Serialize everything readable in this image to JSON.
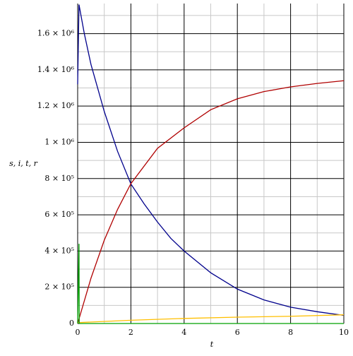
{
  "chart_data": {
    "type": "line",
    "xlabel": "t",
    "ylabel": "s, i, t, r",
    "xlim": [
      0,
      10
    ],
    "ylim": [
      0,
      1766000
    ],
    "xticks": [
      0,
      2,
      4,
      6,
      8,
      10
    ],
    "yticks": [
      0,
      {
        "value": 200000,
        "label": "2 × 10⁵"
      },
      {
        "value": 400000,
        "label": "4 × 10⁵"
      },
      {
        "value": 600000,
        "label": "6 × 10⁵"
      },
      {
        "value": 800000,
        "label": "8 × 10⁵"
      },
      {
        "value": 1000000,
        "label": "1 × 10⁶"
      },
      {
        "value": 1200000,
        "label": "1.2 × 10⁶"
      },
      {
        "value": 1400000,
        "label": "1.4 × 10⁶"
      },
      {
        "value": 1600000,
        "label": "1.6 × 10⁶"
      }
    ],
    "xminor": [
      1,
      3,
      5,
      7,
      9
    ],
    "yminor": [
      100000,
      300000,
      500000,
      700000,
      900000,
      1100000,
      1300000,
      1500000,
      1700000
    ],
    "grid": true,
    "series": [
      {
        "color": "#00008c",
        "x": [
          0,
          0.05,
          0.25,
          0.5,
          1,
          1.5,
          2,
          2.5,
          3,
          3.5,
          4,
          5,
          6,
          7,
          8,
          9,
          10
        ],
        "values": [
          1320000,
          1760000,
          1600000,
          1430000,
          1170000,
          950000,
          770000,
          660000,
          560000,
          470000,
          400000,
          280000,
          190000,
          130000,
          90000,
          65000,
          45000
        ]
      },
      {
        "color": "#b00000",
        "x": [
          0,
          0.5,
          1,
          1.5,
          2,
          3,
          4,
          5,
          6,
          7,
          8,
          9,
          10
        ],
        "values": [
          0,
          250000,
          460000,
          630000,
          772000,
          967000,
          1080000,
          1180000,
          1240000,
          1280000,
          1306000,
          1325000,
          1340000
        ]
      },
      {
        "color": "#ffbf00",
        "x": [
          0,
          2,
          4,
          6,
          8,
          10
        ],
        "values": [
          5000,
          18000,
          28000,
          35000,
          40000,
          48000
        ]
      },
      {
        "color": "#00a000",
        "x": [
          0,
          0.05,
          0.06,
          0.1,
          10
        ],
        "values": [
          0,
          440000,
          0,
          0,
          0
        ]
      }
    ]
  }
}
